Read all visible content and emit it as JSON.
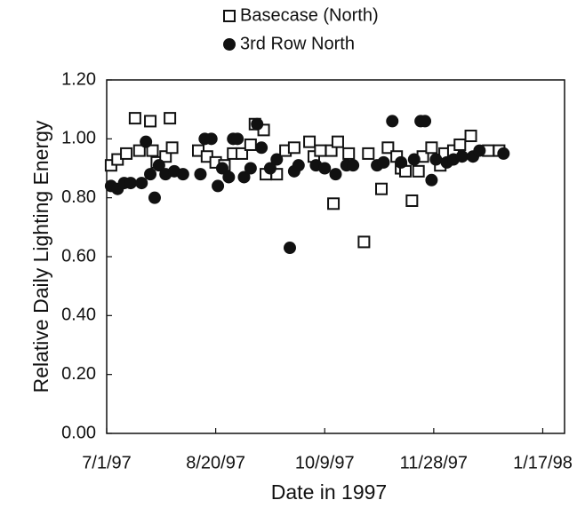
{
  "chart_data": {
    "type": "scatter",
    "xlabel": "Date in 1997",
    "ylabel": "Relative Daily Lighting Energy",
    "xlim": [
      "1997-07-01",
      "1998-01-27"
    ],
    "xticks": [
      {
        "value": "1997-07-01",
        "label": "7/1/97"
      },
      {
        "value": "1997-08-20",
        "label": "8/20/97"
      },
      {
        "value": "1997-10-09",
        "label": "10/9/97"
      },
      {
        "value": "1997-11-28",
        "label": "11/28/97"
      },
      {
        "value": "1998-01-17",
        "label": "1/17/98"
      }
    ],
    "ylim": [
      0,
      1.2
    ],
    "yticks": [
      {
        "value": 0,
        "label": "0.00"
      },
      {
        "value": 0.2,
        "label": "0.20"
      },
      {
        "value": 0.4,
        "label": "0.40"
      },
      {
        "value": 0.6,
        "label": "0.60"
      },
      {
        "value": 0.8,
        "label": "0.80"
      },
      {
        "value": 1,
        "label": "1.00"
      },
      {
        "value": 1.2,
        "label": "1.20"
      }
    ],
    "grid": false,
    "series": [
      {
        "name": "Basecase (North)",
        "marker": "square",
        "color": "#111111",
        "x": [
          "1997-07-03",
          "1997-07-06",
          "1997-07-10",
          "1997-07-14",
          "1997-07-16",
          "1997-07-21",
          "1997-07-22",
          "1997-07-24",
          "1997-07-28",
          "1997-07-30",
          "1997-07-31",
          "1997-08-12",
          "1997-08-16",
          "1997-08-20",
          "1997-08-24",
          "1997-08-28",
          "1997-09-01",
          "1997-09-05",
          "1997-09-07",
          "1997-09-11",
          "1997-09-12",
          "1997-09-17",
          "1997-09-21",
          "1997-09-25",
          "1997-10-02",
          "1997-10-04",
          "1997-10-07",
          "1997-10-12",
          "1997-10-13",
          "1997-10-15",
          "1997-10-20",
          "1997-10-27",
          "1997-10-29",
          "1997-11-04",
          "1997-11-07",
          "1997-11-11",
          "1997-11-13",
          "1997-11-15",
          "1997-11-18",
          "1997-11-21",
          "1997-11-23",
          "1997-11-27",
          "1997-12-01",
          "1997-12-03",
          "1997-12-07",
          "1997-12-10",
          "1997-12-15",
          "1997-12-23",
          "1997-12-28"
        ],
        "values": [
          0.91,
          0.93,
          0.95,
          1.07,
          0.96,
          1.06,
          0.96,
          0.92,
          0.94,
          1.07,
          0.97,
          0.96,
          0.94,
          0.92,
          0.91,
          0.95,
          0.95,
          0.98,
          1.05,
          1.03,
          0.88,
          0.88,
          0.96,
          0.97,
          0.99,
          0.94,
          0.96,
          0.96,
          0.78,
          0.99,
          0.95,
          0.65,
          0.95,
          0.83,
          0.97,
          0.94,
          0.9,
          0.89,
          0.79,
          0.89,
          0.94,
          0.97,
          0.91,
          0.95,
          0.96,
          0.98,
          1.01,
          0.96,
          0.96
        ]
      },
      {
        "name": "3rd Row North",
        "marker": "circle",
        "color": "#111111",
        "x": [
          "1997-07-03",
          "1997-07-06",
          "1997-07-09",
          "1997-07-12",
          "1997-07-17",
          "1997-07-19",
          "1997-07-21",
          "1997-07-23",
          "1997-07-25",
          "1997-07-28",
          "1997-08-01",
          "1997-08-05",
          "1997-08-13",
          "1997-08-15",
          "1997-08-18",
          "1997-08-21",
          "1997-08-23",
          "1997-08-26",
          "1997-08-28",
          "1997-08-30",
          "1997-09-02",
          "1997-09-05",
          "1997-09-08",
          "1997-09-10",
          "1997-09-14",
          "1997-09-17",
          "1997-09-23",
          "1997-09-25",
          "1997-09-27",
          "1997-10-05",
          "1997-10-09",
          "1997-10-14",
          "1997-10-19",
          "1997-10-22",
          "1997-11-02",
          "1997-11-05",
          "1997-11-09",
          "1997-11-13",
          "1997-11-19",
          "1997-11-22",
          "1997-11-24",
          "1997-11-27",
          "1997-11-29",
          "1997-12-04",
          "1997-12-07",
          "1997-12-11",
          "1997-12-16",
          "1997-12-19",
          "1997-12-30"
        ],
        "values": [
          0.84,
          0.83,
          0.85,
          0.85,
          0.85,
          0.99,
          0.88,
          0.8,
          0.91,
          0.88,
          0.89,
          0.88,
          0.88,
          1.0,
          1.0,
          0.84,
          0.9,
          0.87,
          1.0,
          1.0,
          0.87,
          0.9,
          1.05,
          0.97,
          0.9,
          0.93,
          0.63,
          0.89,
          0.91,
          0.91,
          0.9,
          0.88,
          0.91,
          0.91,
          0.91,
          0.92,
          1.06,
          0.92,
          0.93,
          1.06,
          1.06,
          0.86,
          0.93,
          0.92,
          0.93,
          0.94,
          0.94,
          0.96,
          0.95
        ]
      }
    ]
  }
}
